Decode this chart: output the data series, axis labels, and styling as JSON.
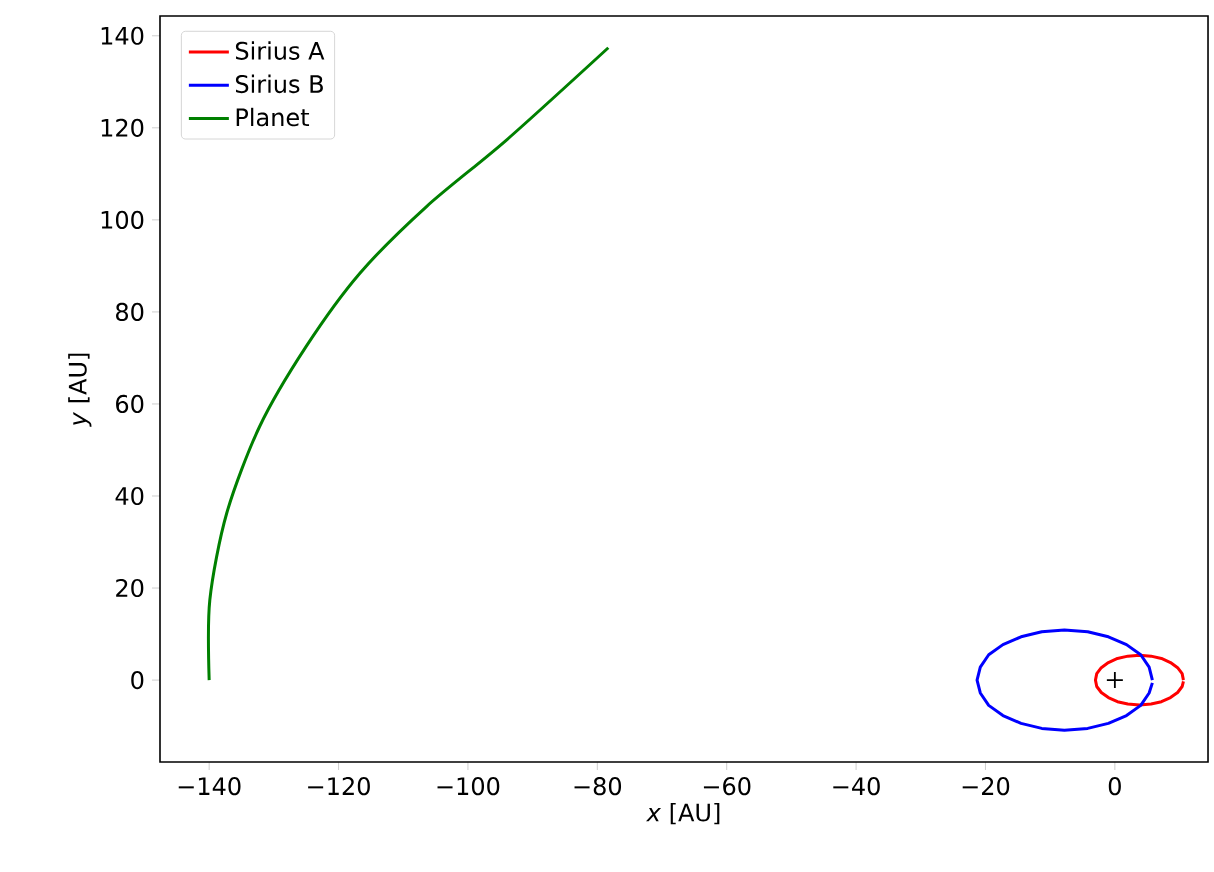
{
  "chart_data": {
    "type": "line",
    "xlabel": "*x* [AU]",
    "ylabel": "*y* [AU]",
    "xlim": [
      -147.6,
      14.4
    ],
    "ylim": [
      -17.8,
      144.3
    ],
    "xticks": [
      {
        "value": -140,
        "label": "−140"
      },
      {
        "value": -120,
        "label": "−120"
      },
      {
        "value": -100,
        "label": "−100"
      },
      {
        "value": -80,
        "label": "−80"
      },
      {
        "value": -60,
        "label": "−60"
      },
      {
        "value": -40,
        "label": "−40"
      },
      {
        "value": -20,
        "label": "−20"
      },
      0
    ],
    "yticks": [
      0,
      20,
      40,
      60,
      80,
      100,
      120,
      140
    ],
    "legend": "top left",
    "grid": false,
    "series": [
      {
        "name": "Sirius A",
        "color": "#ff0000",
        "x": [
          10.6,
          10.4,
          9.7,
          8.6,
          7.2,
          5.6,
          3.8,
          2.0,
          0.4,
          -1.0,
          -2.1,
          -2.8,
          -3.0,
          -2.8,
          -2.1,
          -1.0,
          0.4,
          2.0,
          3.8,
          5.6,
          7.2,
          8.6,
          9.7,
          10.4,
          10.6
        ],
        "values": [
          0,
          1.4,
          2.7,
          3.8,
          4.7,
          5.2,
          5.4,
          5.2,
          4.7,
          3.8,
          2.7,
          1.4,
          0,
          -1.4,
          -2.7,
          -3.8,
          -4.7,
          -5.2,
          -5.4,
          -5.2,
          -4.7,
          -3.8,
          -2.7,
          -1.4,
          -0.3
        ]
      },
      {
        "name": "Sirius B",
        "color": "#0000ff",
        "x": [
          5.8,
          5.3,
          4.0,
          1.8,
          -1.0,
          -4.2,
          -7.8,
          -11.3,
          -14.5,
          -17.3,
          -19.5,
          -20.8,
          -21.3,
          -20.8,
          -19.5,
          -17.3,
          -14.5,
          -11.3,
          -7.8,
          -4.2,
          -1.0,
          1.8,
          4.0,
          5.3,
          5.8
        ],
        "values": [
          0,
          2.8,
          5.5,
          7.7,
          9.4,
          10.5,
          10.9,
          10.5,
          9.4,
          7.7,
          5.5,
          2.8,
          0,
          -2.8,
          -5.5,
          -7.7,
          -9.4,
          -10.5,
          -10.9,
          -10.5,
          -9.4,
          -7.7,
          -5.5,
          -2.8,
          -0.6
        ]
      },
      {
        "name": "Planet",
        "color": "#008000",
        "x": [
          -140,
          -139.9,
          -137.3,
          -132.2,
          -125,
          -116.7,
          -106.4,
          -94,
          -78.3
        ],
        "values": [
          0,
          17.4,
          36.2,
          55.1,
          72.5,
          88.4,
          102.9,
          117.4,
          137.4
        ]
      },
      {
        "type": "scatter",
        "color": "#000000",
        "marker": "cross",
        "x": [
          0
        ],
        "values": [
          0
        ]
      }
    ]
  }
}
